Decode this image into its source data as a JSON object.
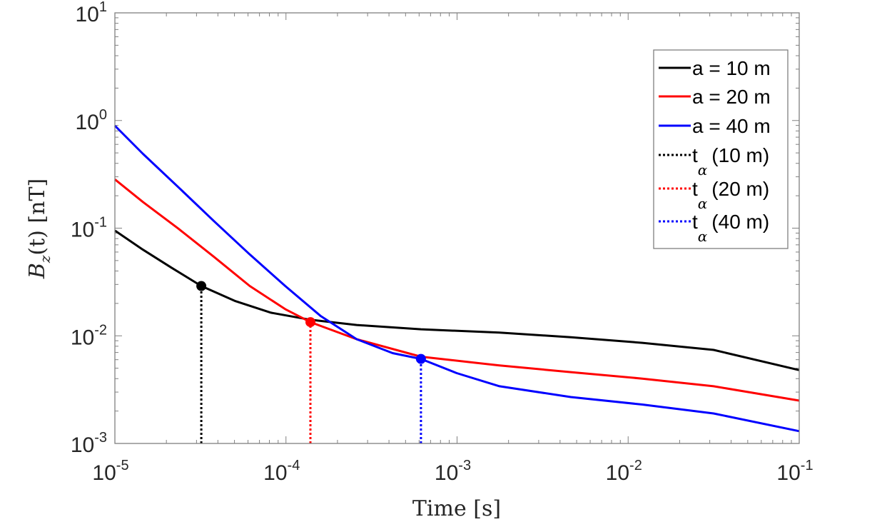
{
  "chart_data": {
    "type": "line",
    "xlabel": "Time [s]",
    "ylabel": "B_z(t) [nT]",
    "ylabel_parts": {
      "main": "B",
      "sub": "z",
      "rest": "(t) [nT]"
    },
    "xscale": "log",
    "yscale": "log",
    "xlim": [
      1e-05,
      0.1
    ],
    "ylim": [
      0.001,
      10.0
    ],
    "x_ticks": [
      {
        "base": "10",
        "exp": "-5"
      },
      {
        "base": "10",
        "exp": "-4"
      },
      {
        "base": "10",
        "exp": "-3"
      },
      {
        "base": "10",
        "exp": "-2"
      },
      {
        "base": "10",
        "exp": "-1"
      }
    ],
    "y_ticks": [
      {
        "base": "10",
        "exp": "-3"
      },
      {
        "base": "10",
        "exp": "-2"
      },
      {
        "base": "10",
        "exp": "-1"
      },
      {
        "base": "10",
        "exp": "0"
      },
      {
        "base": "10",
        "exp": "1"
      }
    ],
    "grid": false,
    "legend_position": "top-right",
    "series": [
      {
        "name": "a = 10 m",
        "color": "#000000",
        "style": "solid",
        "x": [
          1e-05,
          1.46e-05,
          2.14e-05,
          3.2e-05,
          5.07e-05,
          8.18e-05,
          0.000139,
          0.000259,
          0.000615,
          0.00177,
          0.00462,
          0.0121,
          0.0316,
          0.1
        ],
        "y": [
          0.095,
          0.063,
          0.043,
          0.029,
          0.021,
          0.0164,
          0.0141,
          0.0126,
          0.0115,
          0.0107,
          0.0097,
          0.0086,
          0.0074,
          0.0048
        ]
      },
      {
        "name": "a = 20 m",
        "color": "#ff0000",
        "style": "solid",
        "x": [
          1e-05,
          1.46e-05,
          2.35e-05,
          3.8e-05,
          6.14e-05,
          9.9e-05,
          0.000139,
          0.000259,
          0.000615,
          0.00177,
          0.00462,
          0.0121,
          0.0316,
          0.1
        ],
        "y": [
          0.284,
          0.175,
          0.099,
          0.054,
          0.029,
          0.0177,
          0.0134,
          0.0093,
          0.0064,
          0.0053,
          0.0046,
          0.004,
          0.0034,
          0.0025
        ]
      },
      {
        "name": "a = 40 m",
        "color": "#0000ff",
        "style": "solid",
        "x": [
          1e-05,
          1.46e-05,
          2.35e-05,
          3.8e-05,
          6.14e-05,
          9.9e-05,
          0.00016,
          0.000259,
          0.00042,
          0.000615,
          0.000995,
          0.00177,
          0.00462,
          0.0121,
          0.0316,
          0.1
        ],
        "y": [
          0.895,
          0.49,
          0.24,
          0.116,
          0.057,
          0.029,
          0.0152,
          0.0093,
          0.0069,
          0.0061,
          0.0045,
          0.0034,
          0.0027,
          0.0023,
          0.0019,
          0.0013
        ]
      },
      {
        "name": "t_α (10 m)",
        "label_main": "t",
        "label_sub": "α",
        "label_rest": "(10 m)",
        "color": "#000000",
        "style": "dotted",
        "x": [
          3.2e-05,
          3.2e-05
        ],
        "y": [
          0.001,
          0.029
        ],
        "marker_point": [
          3.2e-05,
          0.029
        ]
      },
      {
        "name": "t_α (20 m)",
        "label_main": "t",
        "label_sub": "α",
        "label_rest": "(20 m)",
        "color": "#ff0000",
        "style": "dotted",
        "x": [
          0.000139,
          0.000139
        ],
        "y": [
          0.001,
          0.0134
        ],
        "marker_point": [
          0.000139,
          0.0134
        ]
      },
      {
        "name": "t_α (40 m)",
        "label_main": "t",
        "label_sub": "α",
        "label_rest": "(40 m)",
        "color": "#0000ff",
        "style": "dotted",
        "x": [
          0.000615,
          0.000615
        ],
        "y": [
          0.001,
          0.0061
        ],
        "marker_point": [
          0.000615,
          0.0061
        ]
      }
    ]
  }
}
